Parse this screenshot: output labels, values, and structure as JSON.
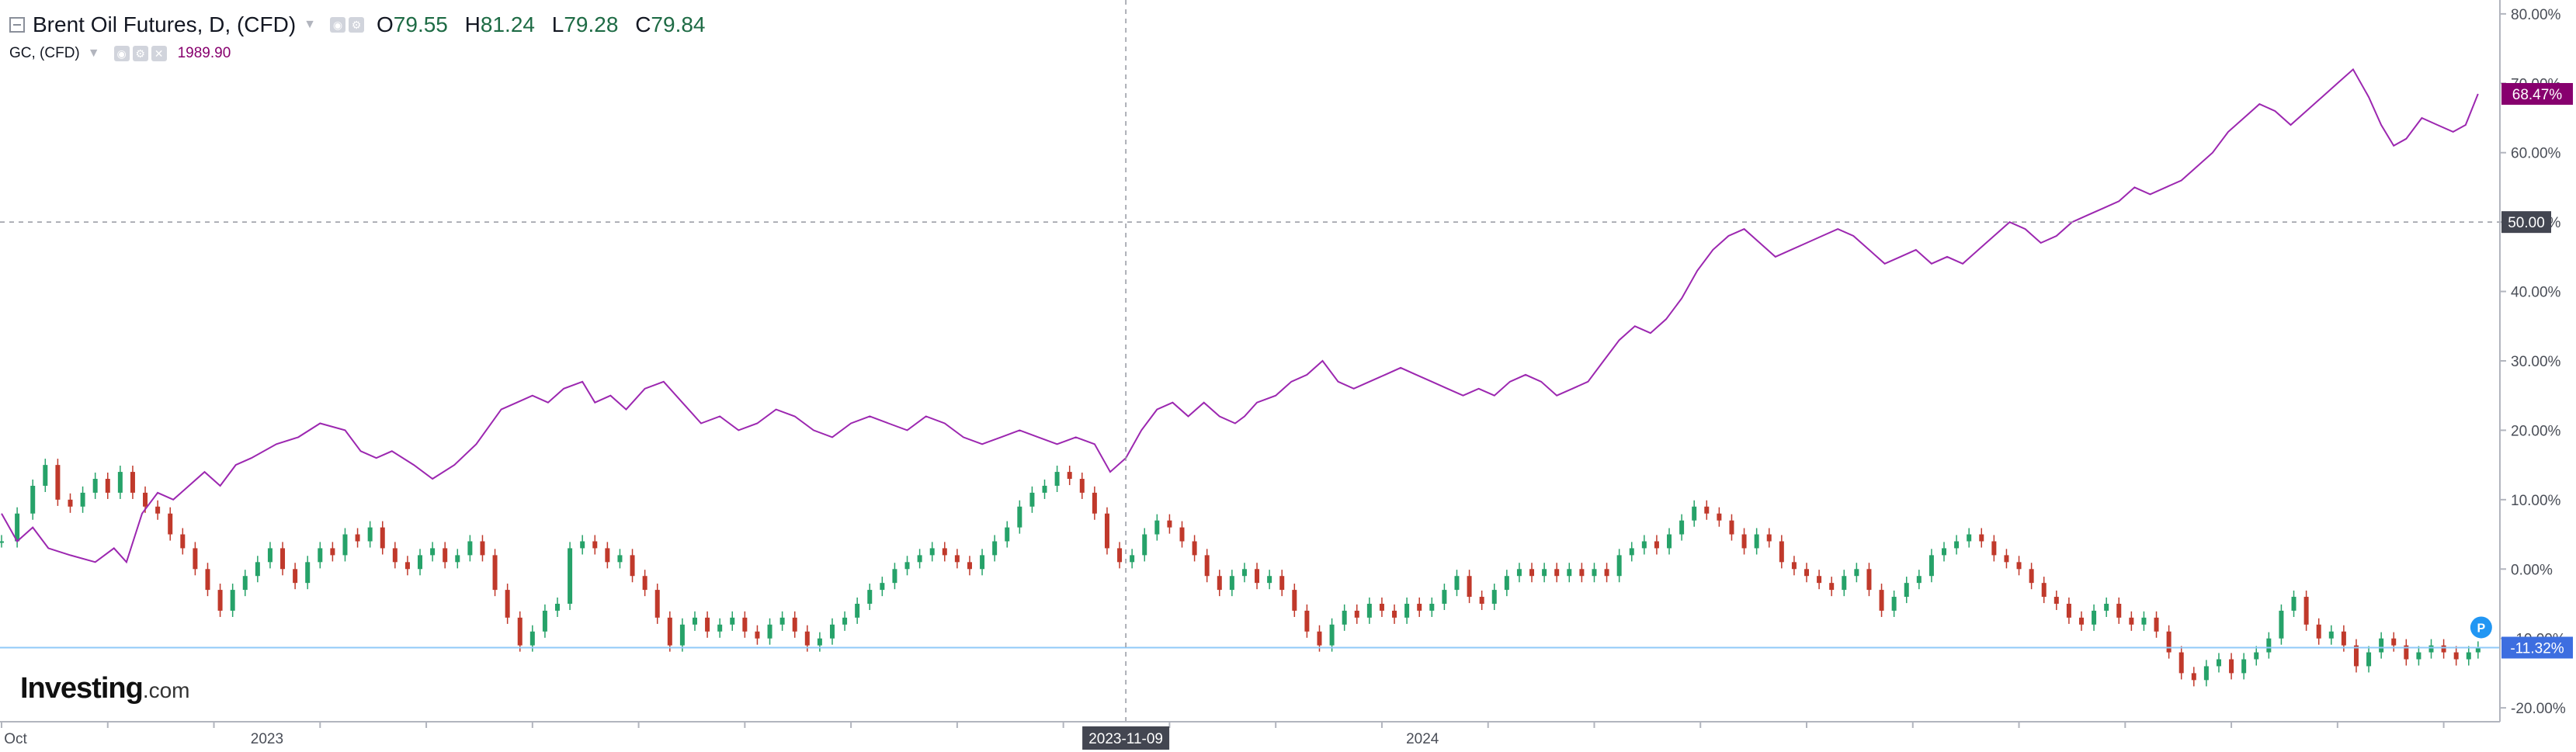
{
  "legend": {
    "main_title": "Brent Oil Futures, D, (CFD)",
    "ohlc": {
      "o_label": "O",
      "o": "79.55",
      "h_label": "H",
      "h": "81.24",
      "l_label": "L",
      "l": "79.28",
      "c_label": "C",
      "c": "79.84"
    },
    "secondary_title": "GC, (CFD)",
    "secondary_value": "1989.90"
  },
  "logo": {
    "main": "Investing",
    "suffix": ".com"
  },
  "colors": {
    "gold_line": "#9c27b0",
    "gold_badge": "#87006e",
    "up_candle": "#26a269",
    "down_candle": "#c0392b",
    "brent_line": "#90caf9",
    "brent_badge": "#3d6ee0",
    "crosshair_badge": "#434651"
  },
  "crosshair": {
    "date_label": "2023-11-09",
    "y_label": "50.00"
  },
  "chart_data": {
    "type": "line",
    "y_axis": {
      "unit": "percent change",
      "ticks": [
        "80.00%",
        "70.00%",
        "60.00%",
        "50.00%",
        "40.00%",
        "30.00%",
        "20.00%",
        "10.00%",
        "0.00%",
        "-10.00%",
        "-20.00%"
      ],
      "ylim": [
        -22,
        82
      ],
      "side": "right"
    },
    "x_axis": {
      "tick_labels": [
        {
          "label": "Oct",
          "x": 0
        },
        {
          "label": "2023",
          "x": 85
        },
        {
          "label": "2024",
          "x": 455
        }
      ],
      "xlim": [
        0,
        800
      ]
    },
    "gold_last_label": "68.47%",
    "brent_last_label": "-11.32%",
    "gold_series": [
      [
        0,
        8
      ],
      [
        5,
        4
      ],
      [
        10,
        6
      ],
      [
        15,
        3
      ],
      [
        22,
        2
      ],
      [
        30,
        1
      ],
      [
        36,
        3
      ],
      [
        40,
        1
      ],
      [
        45,
        8
      ],
      [
        50,
        11
      ],
      [
        55,
        10
      ],
      [
        60,
        12
      ],
      [
        65,
        14
      ],
      [
        70,
        12
      ],
      [
        75,
        15
      ],
      [
        80,
        16
      ],
      [
        88,
        18
      ],
      [
        95,
        19
      ],
      [
        102,
        21
      ],
      [
        110,
        20
      ],
      [
        115,
        17
      ],
      [
        120,
        16
      ],
      [
        125,
        17
      ],
      [
        132,
        15
      ],
      [
        138,
        13
      ],
      [
        145,
        15
      ],
      [
        152,
        18
      ],
      [
        160,
        23
      ],
      [
        165,
        24
      ],
      [
        170,
        25
      ],
      [
        175,
        24
      ],
      [
        180,
        26
      ],
      [
        186,
        27
      ],
      [
        190,
        24
      ],
      [
        195,
        25
      ],
      [
        200,
        23
      ],
      [
        206,
        26
      ],
      [
        212,
        27
      ],
      [
        218,
        24
      ],
      [
        224,
        21
      ],
      [
        230,
        22
      ],
      [
        236,
        20
      ],
      [
        242,
        21
      ],
      [
        248,
        23
      ],
      [
        254,
        22
      ],
      [
        260,
        20
      ],
      [
        266,
        19
      ],
      [
        272,
        21
      ],
      [
        278,
        22
      ],
      [
        284,
        21
      ],
      [
        290,
        20
      ],
      [
        296,
        22
      ],
      [
        302,
        21
      ],
      [
        308,
        19
      ],
      [
        314,
        18
      ],
      [
        320,
        19
      ],
      [
        326,
        20
      ],
      [
        332,
        19
      ],
      [
        338,
        18
      ],
      [
        344,
        19
      ],
      [
        350,
        18
      ],
      [
        355,
        14
      ],
      [
        360,
        16
      ],
      [
        365,
        20
      ],
      [
        370,
        23
      ],
      [
        375,
        24
      ],
      [
        380,
        22
      ],
      [
        385,
        24
      ],
      [
        390,
        22
      ],
      [
        395,
        21
      ],
      [
        398,
        22
      ],
      [
        402,
        24
      ],
      [
        408,
        25
      ],
      [
        413,
        27
      ],
      [
        418,
        28
      ],
      [
        423,
        30
      ],
      [
        428,
        27
      ],
      [
        433,
        26
      ],
      [
        438,
        27
      ],
      [
        443,
        28
      ],
      [
        448,
        29
      ],
      [
        453,
        28
      ],
      [
        458,
        27
      ],
      [
        463,
        26
      ],
      [
        468,
        25
      ],
      [
        473,
        26
      ],
      [
        478,
        25
      ],
      [
        483,
        27
      ],
      [
        488,
        28
      ],
      [
        493,
        27
      ],
      [
        498,
        25
      ],
      [
        503,
        26
      ],
      [
        508,
        27
      ],
      [
        513,
        30
      ],
      [
        518,
        33
      ],
      [
        523,
        35
      ],
      [
        528,
        34
      ],
      [
        533,
        36
      ],
      [
        538,
        39
      ],
      [
        543,
        43
      ],
      [
        548,
        46
      ],
      [
        553,
        48
      ],
      [
        558,
        49
      ],
      [
        563,
        47
      ],
      [
        568,
        45
      ],
      [
        573,
        46
      ],
      [
        578,
        47
      ],
      [
        583,
        48
      ],
      [
        588,
        49
      ],
      [
        593,
        48
      ],
      [
        598,
        46
      ],
      [
        603,
        44
      ],
      [
        608,
        45
      ],
      [
        613,
        46
      ],
      [
        618,
        44
      ],
      [
        623,
        45
      ],
      [
        628,
        44
      ],
      [
        633,
        46
      ],
      [
        638,
        48
      ],
      [
        643,
        50
      ],
      [
        648,
        49
      ],
      [
        653,
        47
      ],
      [
        658,
        48
      ],
      [
        663,
        50
      ],
      [
        668,
        51
      ],
      [
        673,
        52
      ],
      [
        678,
        53
      ],
      [
        683,
        55
      ],
      [
        688,
        54
      ],
      [
        693,
        55
      ],
      [
        698,
        56
      ],
      [
        703,
        58
      ],
      [
        708,
        60
      ],
      [
        713,
        63
      ],
      [
        718,
        65
      ],
      [
        723,
        67
      ],
      [
        728,
        66
      ],
      [
        733,
        64
      ],
      [
        738,
        66
      ],
      [
        743,
        68
      ],
      [
        748,
        70
      ],
      [
        753,
        72
      ],
      [
        758,
        68
      ],
      [
        762,
        64
      ],
      [
        766,
        61
      ],
      [
        770,
        62
      ],
      [
        775,
        65
      ],
      [
        780,
        64
      ],
      [
        785,
        63
      ],
      [
        789,
        64
      ],
      [
        793,
        68.47
      ]
    ],
    "brent_series": [
      [
        0,
        4
      ],
      [
        5,
        8
      ],
      [
        10,
        12
      ],
      [
        14,
        15
      ],
      [
        18,
        10
      ],
      [
        22,
        9
      ],
      [
        26,
        11
      ],
      [
        30,
        13
      ],
      [
        34,
        11
      ],
      [
        38,
        14
      ],
      [
        42,
        11
      ],
      [
        46,
        9
      ],
      [
        50,
        8
      ],
      [
        54,
        5
      ],
      [
        58,
        3
      ],
      [
        62,
        0
      ],
      [
        66,
        -3
      ],
      [
        70,
        -6
      ],
      [
        74,
        -3
      ],
      [
        78,
        -1
      ],
      [
        82,
        1
      ],
      [
        86,
        3
      ],
      [
        90,
        0
      ],
      [
        94,
        -2
      ],
      [
        98,
        1
      ],
      [
        102,
        3
      ],
      [
        106,
        2
      ],
      [
        110,
        5
      ],
      [
        114,
        4
      ],
      [
        118,
        6
      ],
      [
        122,
        3
      ],
      [
        126,
        1
      ],
      [
        130,
        0
      ],
      [
        134,
        2
      ],
      [
        138,
        3
      ],
      [
        142,
        1
      ],
      [
        146,
        2
      ],
      [
        150,
        4
      ],
      [
        154,
        2
      ],
      [
        158,
        -3
      ],
      [
        162,
        -7
      ],
      [
        166,
        -11
      ],
      [
        170,
        -9
      ],
      [
        174,
        -6
      ],
      [
        178,
        -5
      ],
      [
        182,
        3
      ],
      [
        186,
        4
      ],
      [
        190,
        3
      ],
      [
        194,
        1
      ],
      [
        198,
        2
      ],
      [
        202,
        -1
      ],
      [
        206,
        -3
      ],
      [
        210,
        -7
      ],
      [
        214,
        -11
      ],
      [
        218,
        -8
      ],
      [
        222,
        -7
      ],
      [
        226,
        -9
      ],
      [
        230,
        -8
      ],
      [
        234,
        -7
      ],
      [
        238,
        -9
      ],
      [
        242,
        -10
      ],
      [
        246,
        -8
      ],
      [
        250,
        -7
      ],
      [
        254,
        -9
      ],
      [
        258,
        -11
      ],
      [
        262,
        -10
      ],
      [
        266,
        -8
      ],
      [
        270,
        -7
      ],
      [
        274,
        -5
      ],
      [
        278,
        -3
      ],
      [
        282,
        -2
      ],
      [
        286,
        0
      ],
      [
        290,
        1
      ],
      [
        294,
        2
      ],
      [
        298,
        3
      ],
      [
        302,
        2
      ],
      [
        306,
        1
      ],
      [
        310,
        0
      ],
      [
        314,
        2
      ],
      [
        318,
        4
      ],
      [
        322,
        6
      ],
      [
        326,
        9
      ],
      [
        330,
        11
      ],
      [
        334,
        12
      ],
      [
        338,
        14
      ],
      [
        342,
        13
      ],
      [
        346,
        11
      ],
      [
        350,
        8
      ],
      [
        354,
        3
      ],
      [
        358,
        1
      ],
      [
        362,
        2
      ],
      [
        366,
        5
      ],
      [
        370,
        7
      ],
      [
        374,
        6
      ],
      [
        378,
        4
      ],
      [
        382,
        2
      ],
      [
        386,
        -1
      ],
      [
        390,
        -3
      ],
      [
        394,
        -1
      ],
      [
        398,
        0
      ],
      [
        402,
        -2
      ],
      [
        406,
        -1
      ],
      [
        410,
        -3
      ],
      [
        414,
        -6
      ],
      [
        418,
        -9
      ],
      [
        422,
        -11
      ],
      [
        426,
        -8
      ],
      [
        430,
        -6
      ],
      [
        434,
        -7
      ],
      [
        438,
        -5
      ],
      [
        442,
        -6
      ],
      [
        446,
        -7
      ],
      [
        450,
        -5
      ],
      [
        454,
        -6
      ],
      [
        458,
        -5
      ],
      [
        462,
        -3
      ],
      [
        466,
        -1
      ],
      [
        470,
        -4
      ],
      [
        474,
        -5
      ],
      [
        478,
        -3
      ],
      [
        482,
        -1
      ],
      [
        486,
        0
      ],
      [
        490,
        -1
      ],
      [
        494,
        0
      ],
      [
        498,
        -1
      ],
      [
        502,
        0
      ],
      [
        506,
        -1
      ],
      [
        510,
        0
      ],
      [
        514,
        -1
      ],
      [
        518,
        2
      ],
      [
        522,
        3
      ],
      [
        526,
        4
      ],
      [
        530,
        3
      ],
      [
        534,
        5
      ],
      [
        538,
        7
      ],
      [
        542,
        9
      ],
      [
        546,
        8
      ],
      [
        550,
        7
      ],
      [
        554,
        5
      ],
      [
        558,
        3
      ],
      [
        562,
        5
      ],
      [
        566,
        4
      ],
      [
        570,
        1
      ],
      [
        574,
        0
      ],
      [
        578,
        -1
      ],
      [
        582,
        -2
      ],
      [
        586,
        -3
      ],
      [
        590,
        -1
      ],
      [
        594,
        0
      ],
      [
        598,
        -3
      ],
      [
        602,
        -6
      ],
      [
        606,
        -4
      ],
      [
        610,
        -2
      ],
      [
        614,
        -1
      ],
      [
        618,
        2
      ],
      [
        622,
        3
      ],
      [
        626,
        4
      ],
      [
        630,
        5
      ],
      [
        634,
        4
      ],
      [
        638,
        2
      ],
      [
        642,
        1
      ],
      [
        646,
        0
      ],
      [
        650,
        -2
      ],
      [
        654,
        -4
      ],
      [
        658,
        -5
      ],
      [
        662,
        -7
      ],
      [
        666,
        -8
      ],
      [
        670,
        -6
      ],
      [
        674,
        -5
      ],
      [
        678,
        -7
      ],
      [
        682,
        -8
      ],
      [
        686,
        -7
      ],
      [
        690,
        -9
      ],
      [
        694,
        -12
      ],
      [
        698,
        -15
      ],
      [
        702,
        -16
      ],
      [
        706,
        -14
      ],
      [
        710,
        -13
      ],
      [
        714,
        -15
      ],
      [
        718,
        -13
      ],
      [
        722,
        -12
      ],
      [
        726,
        -10
      ],
      [
        730,
        -6
      ],
      [
        734,
        -4
      ],
      [
        738,
        -8
      ],
      [
        742,
        -10
      ],
      [
        746,
        -9
      ],
      [
        750,
        -11
      ],
      [
        754,
        -14
      ],
      [
        758,
        -12
      ],
      [
        762,
        -10
      ],
      [
        766,
        -11
      ],
      [
        770,
        -13
      ],
      [
        774,
        -12
      ],
      [
        778,
        -11
      ],
      [
        782,
        -12
      ],
      [
        786,
        -13
      ],
      [
        790,
        -12
      ],
      [
        793,
        -11.32
      ]
    ]
  }
}
